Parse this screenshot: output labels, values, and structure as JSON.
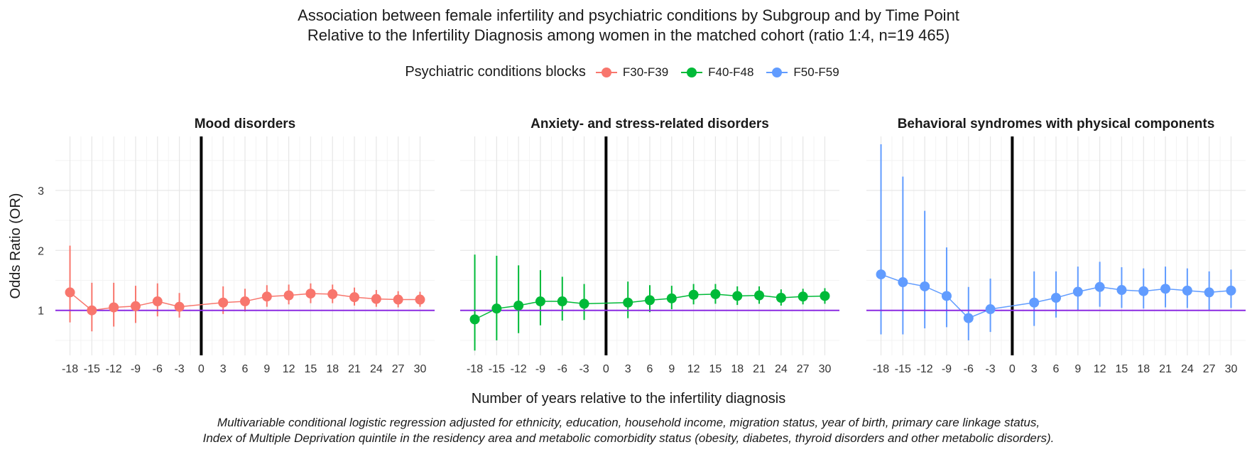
{
  "header": {
    "title_line1": "Association between female infertility and psychiatric conditions by Subgroup and by Time Point",
    "title_line2": "Relative to the Infertility Diagnosis among women in the matched cohort (ratio 1:4, n=19 465)"
  },
  "legend": {
    "title": "Psychiatric conditions blocks",
    "items": [
      {
        "label": "F30-F39",
        "color": "#F8766D"
      },
      {
        "label": "F40-F48",
        "color": "#00BA38"
      },
      {
        "label": "F50-F59",
        "color": "#619CFF"
      }
    ]
  },
  "axes": {
    "xlabel": "Number of years relative to the infertility diagnosis",
    "ylabel": "Odds Ratio (OR)"
  },
  "footnote": {
    "line1": "Multivariable conditional logistic regression adjusted for ethnicity, education, household income, migration status, year of birth, primary care linkage status,",
    "line2": "Index of Multiple Deprivation quintile in the residency area and metabolic comorbidity status (obesity, diabetes, thyroid disorders and other metabolic disorders)."
  },
  "chart_data": {
    "type": "line",
    "x_ticks": [
      -18,
      -15,
      -12,
      -9,
      -6,
      -3,
      0,
      3,
      6,
      9,
      12,
      15,
      18,
      21,
      24,
      27,
      30
    ],
    "y_ticks": [
      1,
      2,
      3
    ],
    "xlim": [
      -20,
      32
    ],
    "ylim": [
      0.25,
      3.9
    ],
    "reference_line": {
      "y": 1,
      "color": "#8B2BE2"
    },
    "vertical_line": {
      "x": 0,
      "color": "#000000"
    },
    "grid": true,
    "panels": [
      {
        "title": "Mood disorders",
        "series": "F30-F39",
        "color": "#F8766D",
        "x": [
          -18,
          -15,
          -12,
          -9,
          -6,
          -3,
          3,
          6,
          9,
          12,
          15,
          18,
          21,
          24,
          27,
          30
        ],
        "or": [
          1.3,
          1.0,
          1.05,
          1.07,
          1.15,
          1.06,
          1.13,
          1.15,
          1.23,
          1.25,
          1.28,
          1.27,
          1.22,
          1.19,
          1.18,
          1.18
        ],
        "lower": [
          0.8,
          0.65,
          0.73,
          0.79,
          0.9,
          0.88,
          0.94,
          0.98,
          1.06,
          1.1,
          1.12,
          1.12,
          1.08,
          1.06,
          1.05,
          1.06
        ],
        "upper": [
          2.08,
          1.46,
          1.46,
          1.41,
          1.45,
          1.29,
          1.4,
          1.36,
          1.42,
          1.43,
          1.45,
          1.43,
          1.38,
          1.34,
          1.32,
          1.31
        ]
      },
      {
        "title": "Anxiety- and stress-related disorders",
        "series": "F40-F48",
        "color": "#00BA38",
        "x": [
          -18,
          -15,
          -12,
          -9,
          -6,
          -3,
          3,
          6,
          9,
          12,
          15,
          18,
          21,
          24,
          27,
          30
        ],
        "or": [
          0.85,
          1.03,
          1.08,
          1.15,
          1.15,
          1.11,
          1.13,
          1.17,
          1.2,
          1.26,
          1.27,
          1.24,
          1.25,
          1.21,
          1.23,
          1.24
        ],
        "lower": [
          0.33,
          0.5,
          0.62,
          0.75,
          0.83,
          0.84,
          0.87,
          0.97,
          1.02,
          1.1,
          1.11,
          1.09,
          1.11,
          1.08,
          1.1,
          1.11
        ],
        "upper": [
          1.93,
          1.91,
          1.75,
          1.67,
          1.56,
          1.44,
          1.48,
          1.42,
          1.41,
          1.44,
          1.44,
          1.4,
          1.4,
          1.35,
          1.36,
          1.37
        ]
      },
      {
        "title": "Behavioral syndromes with physical components",
        "series": "F50-F59",
        "color": "#619CFF",
        "x": [
          -18,
          -15,
          -12,
          -9,
          -6,
          -3,
          3,
          6,
          9,
          12,
          15,
          18,
          21,
          24,
          27,
          30
        ],
        "or": [
          1.6,
          1.47,
          1.4,
          1.24,
          0.87,
          1.02,
          1.13,
          1.21,
          1.31,
          1.39,
          1.34,
          1.32,
          1.36,
          1.33,
          1.3,
          1.33
        ],
        "lower": [
          0.6,
          0.6,
          0.7,
          0.72,
          0.5,
          0.64,
          0.74,
          0.88,
          1.0,
          1.06,
          1.04,
          1.03,
          1.05,
          1.04,
          1.01,
          1.04
        ],
        "upper": [
          3.77,
          3.23,
          2.66,
          2.05,
          1.39,
          1.53,
          1.65,
          1.65,
          1.73,
          1.81,
          1.72,
          1.7,
          1.73,
          1.7,
          1.65,
          1.68
        ]
      }
    ]
  }
}
